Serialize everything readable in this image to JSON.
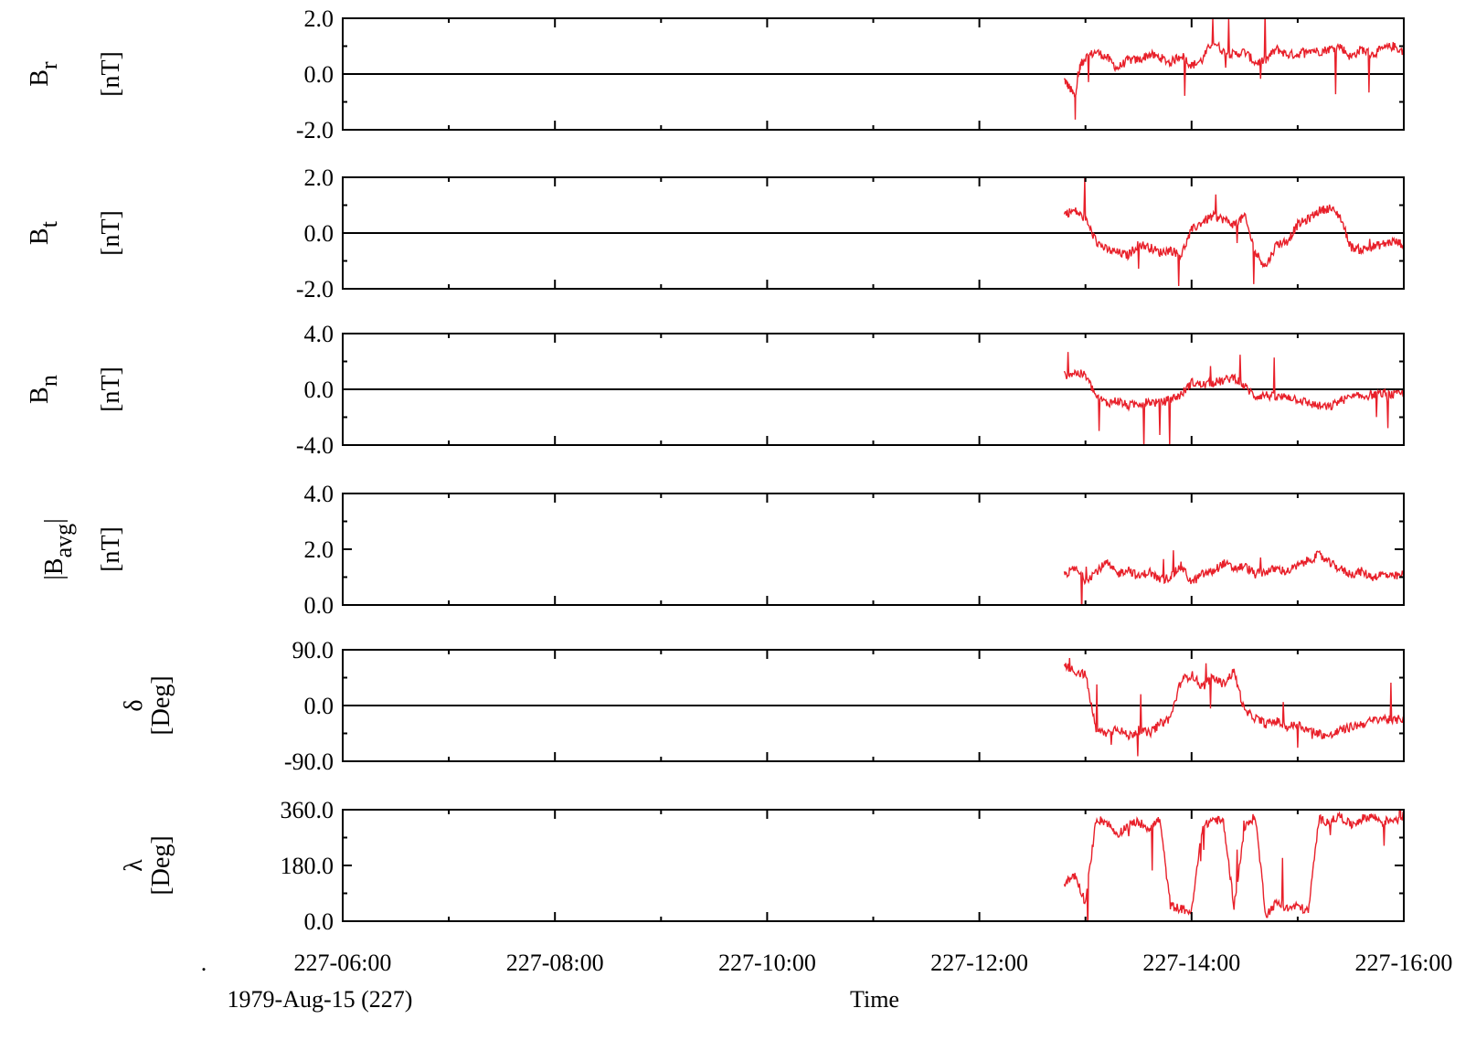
{
  "chart_data": {
    "type": "line",
    "xlabel": "Time",
    "date_label": "1979-Aug-15 (227)",
    "dot_mark": ".",
    "x_ticks": [
      "227-06:00",
      "227-08:00",
      "227-10:00",
      "227-12:00",
      "227-14:00",
      "227-16:00"
    ],
    "x_range": [
      "227-06:00",
      "227-16:00"
    ],
    "x_unit": "hours",
    "x_range_hours": [
      6,
      16
    ],
    "data_start_hour": 12.8,
    "series_color": "#e8202a",
    "zero_line_color": "#000000",
    "panels": [
      {
        "id": "br",
        "label_main": "B",
        "label_sub": "r",
        "label_prefix": "",
        "label_suffix": "",
        "unit": "[nT]",
        "ylim": [
          -2,
          2
        ],
        "ytick_labels": [
          "2.0",
          "0.0",
          "-2.0"
        ],
        "ytick_values": [
          2,
          0,
          -2
        ],
        "zero_line": true,
        "series": [
          {
            "x": [
              12.8,
              12.85,
              12.9,
              12.95,
              13.0,
              13.1,
              13.2,
              13.3,
              13.4,
              13.5,
              13.6,
              13.7,
              13.8,
              13.9,
              14.0,
              14.1,
              14.2,
              14.3,
              14.4,
              14.5,
              14.6,
              14.7,
              14.8,
              14.9,
              15.0,
              15.1,
              15.2,
              15.3,
              15.4,
              15.5,
              15.6,
              15.7,
              15.8,
              15.9,
              16.0
            ],
            "y": [
              -0.2,
              -0.5,
              -0.8,
              0.3,
              0.6,
              0.8,
              0.6,
              0.2,
              0.5,
              0.5,
              0.7,
              0.6,
              0.4,
              0.7,
              0.3,
              0.5,
              1.2,
              0.8,
              0.7,
              0.8,
              0.4,
              0.5,
              0.9,
              0.7,
              0.7,
              0.9,
              0.8,
              0.9,
              1.0,
              0.6,
              0.9,
              0.7,
              0.9,
              1.0,
              0.8
            ]
          }
        ]
      },
      {
        "id": "bt",
        "label_main": "B",
        "label_sub": "t",
        "label_prefix": "",
        "label_suffix": "",
        "unit": "[nT]",
        "ylim": [
          -2,
          2
        ],
        "ytick_labels": [
          "2.0",
          "0.0",
          "-2.0"
        ],
        "ytick_values": [
          2,
          0,
          -2
        ],
        "zero_line": true,
        "series": [
          {
            "x": [
              12.8,
              12.9,
              13.0,
              13.1,
              13.2,
              13.3,
              13.4,
              13.5,
              13.6,
              13.7,
              13.8,
              13.9,
              14.0,
              14.1,
              14.2,
              14.3,
              14.4,
              14.5,
              14.6,
              14.7,
              14.8,
              14.9,
              15.0,
              15.1,
              15.2,
              15.3,
              15.4,
              15.5,
              15.6,
              15.7,
              15.8,
              15.9,
              16.0
            ],
            "y": [
              0.7,
              0.8,
              0.5,
              -0.3,
              -0.6,
              -0.7,
              -0.8,
              -0.4,
              -0.5,
              -0.7,
              -0.6,
              -0.8,
              0.1,
              0.4,
              0.6,
              0.5,
              0.3,
              0.6,
              -0.7,
              -1.2,
              -0.4,
              -0.3,
              0.3,
              0.5,
              0.8,
              0.9,
              0.6,
              -0.5,
              -0.6,
              -0.5,
              -0.4,
              -0.3,
              -0.4
            ]
          }
        ]
      },
      {
        "id": "bn",
        "label_main": "B",
        "label_sub": "n",
        "label_prefix": "",
        "label_suffix": "",
        "unit": "[nT]",
        "ylim": [
          -4,
          4
        ],
        "ytick_labels": [
          "4.0",
          "0.0",
          "-4.0"
        ],
        "ytick_values": [
          4,
          0,
          -4
        ],
        "zero_line": true,
        "series": [
          {
            "x": [
              12.8,
              12.9,
              13.0,
              13.1,
              13.2,
              13.3,
              13.4,
              13.5,
              13.6,
              13.7,
              13.8,
              13.9,
              14.0,
              14.1,
              14.2,
              14.3,
              14.4,
              14.5,
              14.6,
              14.7,
              14.8,
              14.9,
              15.0,
              15.1,
              15.2,
              15.3,
              15.4,
              15.5,
              15.6,
              15.7,
              15.8,
              15.9,
              16.0
            ],
            "y": [
              1.0,
              1.2,
              1.0,
              -0.5,
              -1.0,
              -0.8,
              -1.2,
              -1.0,
              -0.9,
              -1.0,
              -0.7,
              -0.4,
              0.5,
              0.3,
              0.5,
              0.6,
              0.9,
              0.2,
              -0.5,
              -0.4,
              -0.6,
              -0.5,
              -0.7,
              -1.0,
              -1.2,
              -1.3,
              -0.8,
              -0.6,
              -0.5,
              -0.4,
              -0.3,
              -0.4,
              -0.3
            ]
          }
        ]
      },
      {
        "id": "bavg",
        "label_main": "B",
        "label_sub": "avg",
        "label_prefix": "|",
        "label_suffix": "|",
        "unit": "[nT]",
        "ylim": [
          0,
          4
        ],
        "ytick_labels": [
          "4.0",
          "2.0",
          "0.0"
        ],
        "ytick_values": [
          4,
          2,
          0
        ],
        "zero_line": false,
        "series": [
          {
            "x": [
              12.8,
              12.9,
              13.0,
              13.1,
              13.2,
              13.3,
              13.4,
              13.5,
              13.6,
              13.7,
              13.8,
              13.9,
              14.0,
              14.1,
              14.2,
              14.3,
              14.4,
              14.5,
              14.6,
              14.7,
              14.8,
              14.9,
              15.0,
              15.1,
              15.2,
              15.3,
              15.4,
              15.5,
              15.6,
              15.7,
              15.8,
              15.9,
              16.0
            ],
            "y": [
              1.1,
              1.3,
              0.9,
              1.2,
              1.5,
              1.1,
              1.3,
              1.0,
              1.2,
              0.9,
              1.0,
              1.4,
              0.8,
              1.1,
              1.2,
              1.5,
              1.3,
              1.4,
              1.1,
              1.2,
              1.3,
              1.2,
              1.4,
              1.6,
              1.8,
              1.5,
              1.3,
              1.1,
              1.2,
              1.0,
              1.1,
              1.0,
              1.1
            ]
          }
        ]
      },
      {
        "id": "delta",
        "label_main": "δ",
        "label_sub": "",
        "label_prefix": "",
        "label_suffix": "",
        "unit": "[Deg]",
        "ylim": [
          -90,
          90
        ],
        "ytick_labels": [
          "90.0",
          "0.0",
          "-90.0"
        ],
        "ytick_values": [
          90,
          0,
          -90
        ],
        "zero_line": true,
        "series": [
          {
            "x": [
              12.8,
              12.9,
              13.0,
              13.1,
              13.2,
              13.3,
              13.4,
              13.5,
              13.6,
              13.7,
              13.8,
              13.9,
              14.0,
              14.1,
              14.2,
              14.3,
              14.4,
              14.5,
              14.6,
              14.7,
              14.8,
              14.9,
              15.0,
              15.1,
              15.2,
              15.3,
              15.4,
              15.5,
              15.6,
              15.7,
              15.8,
              15.9,
              16.0
            ],
            "y": [
              65,
              55,
              50,
              -40,
              -45,
              -35,
              -50,
              -40,
              -45,
              -30,
              -20,
              40,
              50,
              30,
              45,
              35,
              55,
              -10,
              -20,
              -30,
              -25,
              -35,
              -30,
              -40,
              -45,
              -50,
              -40,
              -35,
              -30,
              -25,
              -20,
              -25,
              -20
            ]
          }
        ]
      },
      {
        "id": "lambda",
        "label_main": "λ",
        "label_sub": "",
        "label_prefix": "",
        "label_suffix": "",
        "unit": "[Deg]",
        "ylim": [
          0,
          360
        ],
        "ytick_labels": [
          "360.0",
          "180.0",
          "0.0"
        ],
        "ytick_values": [
          360,
          180,
          0
        ],
        "zero_line": false,
        "series": [
          {
            "x": [
              12.8,
              12.9,
              13.0,
              13.1,
              13.2,
              13.3,
              13.4,
              13.5,
              13.6,
              13.7,
              13.8,
              13.9,
              14.0,
              14.1,
              14.2,
              14.3,
              14.4,
              14.5,
              14.6,
              14.7,
              14.8,
              14.9,
              15.0,
              15.1,
              15.2,
              15.3,
              15.4,
              15.5,
              15.6,
              15.7,
              15.8,
              15.9,
              16.0
            ],
            "y": [
              120,
              150,
              60,
              330,
              320,
              280,
              310,
              320,
              300,
              330,
              50,
              40,
              30,
              300,
              330,
              320,
              50,
              300,
              340,
              20,
              60,
              40,
              50,
              30,
              330,
              320,
              340,
              310,
              330,
              340,
              320,
              330,
              340
            ]
          }
        ]
      }
    ]
  }
}
